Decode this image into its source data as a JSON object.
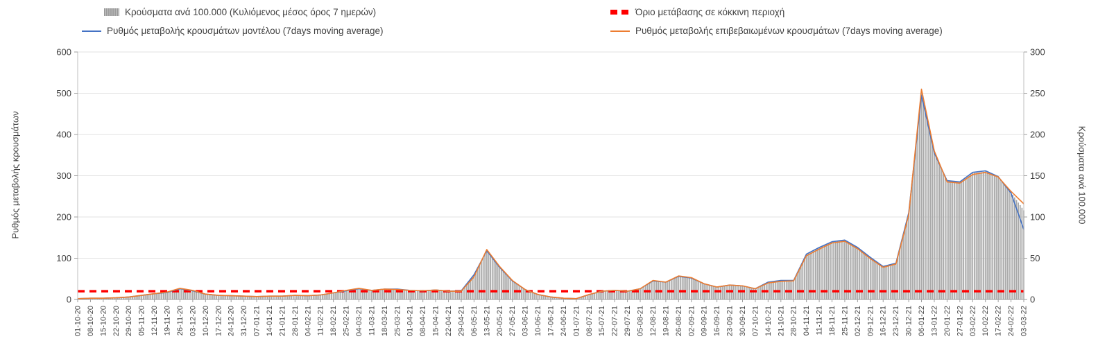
{
  "legend": {
    "items": [
      {
        "label": "Κρούσματα ανά 100.000 (Κυλιόμενος μέσος όρος 7 ημερών)",
        "type": "bar",
        "color": "#a6a6a6"
      },
      {
        "label": "Όριο μετάβασης σε κόκκινη περιοχή",
        "type": "dashed-line",
        "color": "#ff0000"
      },
      {
        "label": "Ρυθμός μεταβολής κρουσμάτων μοντέλου (7days moving average)",
        "type": "line",
        "color": "#4472c4"
      },
      {
        "label": "Ρυθμός μεταβολής επιβεβαιωμένων κρουσμάτων (7days moving average)",
        "type": "line",
        "color": "#ed7d31"
      }
    ]
  },
  "chart_data": {
    "type": "line",
    "title": "",
    "x": [
      "01-10-20",
      "08-10-20",
      "15-10-20",
      "22-10-20",
      "29-10-20",
      "05-11-20",
      "12-11-20",
      "19-11-20",
      "26-11-20",
      "03-12-20",
      "10-12-20",
      "17-12-20",
      "24-12-20",
      "31-12-20",
      "07-01-21",
      "14-01-21",
      "21-01-21",
      "28-01-21",
      "04-02-21",
      "11-02-21",
      "18-02-21",
      "25-02-21",
      "04-03-21",
      "11-03-21",
      "18-03-21",
      "25-03-21",
      "01-04-21",
      "08-04-21",
      "15-04-21",
      "22-04-21",
      "29-04-21",
      "06-05-21",
      "13-05-21",
      "20-05-21",
      "27-05-21",
      "03-06-21",
      "10-06-21",
      "17-06-21",
      "24-06-21",
      "01-07-21",
      "08-07-21",
      "15-07-21",
      "22-07-21",
      "29-07-21",
      "05-08-21",
      "12-08-21",
      "19-08-21",
      "26-08-21",
      "02-09-21",
      "09-09-21",
      "16-09-21",
      "23-09-21",
      "30-09-21",
      "07-10-21",
      "14-10-21",
      "21-10-21",
      "28-10-21",
      "04-11-21",
      "11-11-21",
      "18-11-21",
      "25-11-21",
      "02-12-21",
      "09-12-21",
      "16-12-21",
      "23-12-21",
      "30-12-21",
      "06-01-22",
      "13-01-22",
      "20-01-22",
      "27-01-22",
      "03-02-22",
      "10-02-22",
      "17-02-22",
      "24-02-22",
      "03-03-22"
    ],
    "series": [
      {
        "name": "Ρυθμός μεταβολής κρουσμάτων μοντέλου (7days moving average)",
        "type": "line",
        "axis": "left",
        "color": "#4472c4",
        "values": [
          2,
          3,
          3,
          4,
          6,
          10,
          14,
          17,
          26,
          21,
          13,
          10,
          9,
          8,
          7,
          8,
          8,
          10,
          9,
          11,
          16,
          21,
          26,
          22,
          25,
          25,
          22,
          21,
          23,
          20,
          21,
          60,
          118,
          78,
          45,
          24,
          12,
          6,
          3,
          2,
          12,
          20,
          22,
          20,
          26,
          45,
          42,
          56,
          52,
          38,
          30,
          35,
          33,
          26,
          42,
          46,
          46,
          110,
          126,
          140,
          144,
          126,
          102,
          80,
          88,
          210,
          495,
          355,
          288,
          285,
          308,
          312,
          298,
          258,
          170
        ]
      },
      {
        "name": "Ρυθμός μεταβολής επιβεβαιωμένων κρουσμάτων (7days moving average)",
        "type": "line",
        "axis": "left",
        "color": "#ed7d31",
        "values": [
          2,
          3,
          3,
          4,
          6,
          10,
          14,
          18,
          27,
          22,
          13,
          10,
          9,
          8,
          7,
          8,
          8,
          10,
          9,
          11,
          16,
          22,
          27,
          22,
          25,
          24,
          22,
          21,
          23,
          20,
          20,
          55,
          121,
          80,
          46,
          24,
          12,
          6,
          3,
          2,
          12,
          20,
          22,
          20,
          26,
          46,
          42,
          57,
          53,
          38,
          30,
          35,
          33,
          26,
          40,
          44,
          45,
          106,
          122,
          137,
          141,
          123,
          99,
          78,
          86,
          205,
          510,
          360,
          285,
          282,
          303,
          308,
          297,
          262,
          232
        ]
      },
      {
        "name": "Κρούσματα ανά 100.000 (Κυλιόμενος μέσος όρος 7 ημερών)",
        "type": "bar",
        "axis": "right",
        "color": "#a9a9a9",
        "values": [
          1,
          1,
          2,
          2,
          3,
          5,
          7,
          9,
          13,
          11,
          6,
          5,
          4,
          4,
          4,
          4,
          4,
          5,
          4,
          5,
          8,
          11,
          13,
          11,
          12,
          12,
          11,
          10,
          11,
          10,
          10,
          29,
          59,
          39,
          22,
          12,
          6,
          3,
          2,
          1,
          6,
          10,
          11,
          10,
          13,
          23,
          21,
          28,
          26,
          19,
          15,
          17,
          16,
          13,
          21,
          23,
          23,
          55,
          63,
          70,
          72,
          63,
          51,
          40,
          44,
          104,
          252,
          178,
          144,
          142,
          153,
          155,
          149,
          130,
          108
        ]
      }
    ],
    "threshold": {
      "name": "Όριο μετάβασης σε κόκκινη περιοχή",
      "axis": "left",
      "value": 20,
      "color": "#ff0000"
    },
    "left_axis": {
      "label": "Ρυθμός μεταβολής κρουσμάτων",
      "min": 0,
      "max": 600,
      "step": 100
    },
    "right_axis": {
      "label": "Κρούσματα ανά 100.000",
      "min": 0,
      "max": 300,
      "step": 50
    },
    "grid": true,
    "legend_position": "top"
  }
}
